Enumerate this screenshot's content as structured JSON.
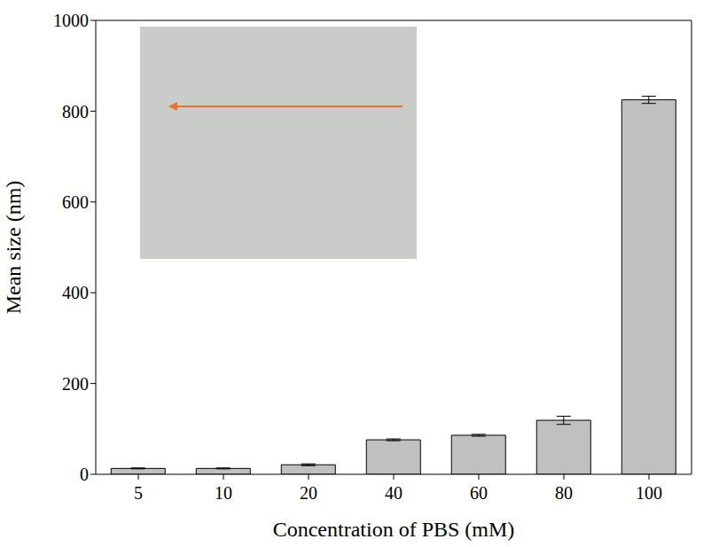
{
  "chart_data": {
    "type": "bar",
    "x_label": "Concentration of PBS (mM)",
    "y_label": "Mean size (nm)",
    "categories": [
      "5",
      "10",
      "20",
      "40",
      "60",
      "80",
      "100"
    ],
    "values": [
      13,
      13,
      21,
      76,
      86,
      119,
      825
    ],
    "errors": [
      1,
      1,
      2,
      2,
      2,
      9,
      8
    ],
    "color": "#c0c0c0",
    "ylim": [
      0,
      1000
    ],
    "yticks": [
      0,
      200,
      400,
      600,
      800,
      1000
    ],
    "grid": false
  }
}
